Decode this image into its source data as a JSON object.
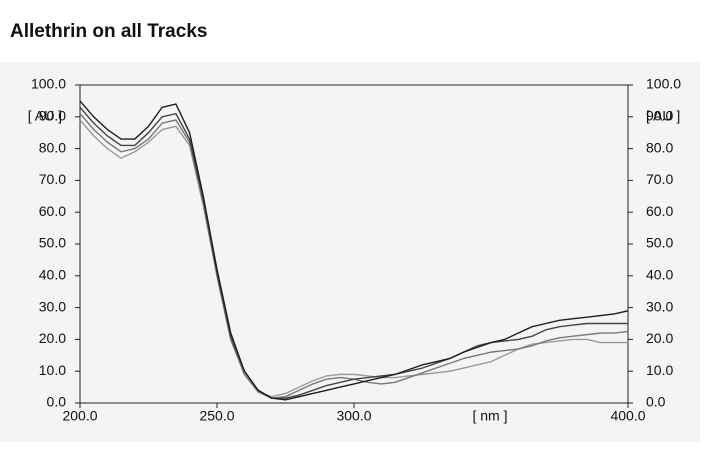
{
  "chart_data": {
    "type": "line",
    "title": "Allethrin on all Tracks",
    "x_label": "[ nm ]",
    "y_label": "[ AU ]",
    "x": [
      200,
      205,
      210,
      215,
      220,
      225,
      230,
      235,
      240,
      245,
      250,
      255,
      260,
      265,
      270,
      275,
      280,
      285,
      290,
      295,
      300,
      305,
      310,
      315,
      320,
      325,
      330,
      335,
      340,
      345,
      350,
      355,
      360,
      365,
      370,
      375,
      380,
      385,
      390,
      395,
      400
    ],
    "series": [
      {
        "color": "#1e1e1e",
        "values": [
          95,
          90,
          86,
          83,
          83,
          87,
          93,
          94,
          85,
          65,
          42,
          22,
          10,
          4,
          1.5,
          1,
          2,
          3,
          4,
          5,
          6,
          7,
          8,
          9,
          10.5,
          12,
          13,
          14,
          16,
          17.5,
          19,
          20,
          22,
          24,
          25,
          26,
          26.5,
          27,
          27.5,
          28,
          29
        ]
      },
      {
        "color": "#444444",
        "values": [
          93,
          88,
          84,
          81,
          81,
          85,
          90,
          91,
          83,
          64,
          41,
          21,
          10,
          4,
          1.5,
          1.5,
          2.5,
          4,
          5.5,
          6.5,
          7.5,
          8,
          8.5,
          9,
          10,
          11,
          12.5,
          14,
          16,
          18,
          19,
          19.5,
          20,
          21,
          23,
          24,
          24.5,
          25,
          25,
          25,
          25
        ]
      },
      {
        "color": "#777777",
        "values": [
          91,
          86,
          82,
          79,
          80,
          83,
          88,
          89,
          82,
          63,
          40,
          20,
          9,
          3.5,
          1.5,
          2,
          4,
          6,
          7.5,
          8,
          7.5,
          6.5,
          6,
          6.5,
          8,
          9.5,
          11,
          12.5,
          14,
          15,
          16,
          16.5,
          17,
          18,
          19.5,
          20.5,
          21,
          21.5,
          22,
          22,
          22.5
        ]
      },
      {
        "color": "#9a9a9a",
        "values": [
          89,
          84,
          80,
          77,
          79,
          82,
          86,
          87,
          81,
          62,
          40,
          20,
          9,
          3.5,
          2,
          3,
          5,
          7,
          8.5,
          9,
          9,
          8.5,
          8,
          8,
          8.5,
          9,
          9.5,
          10,
          11,
          12,
          13,
          15,
          17,
          18.5,
          19,
          19.5,
          20,
          20,
          19,
          19,
          19
        ]
      }
    ],
    "xlim": [
      200,
      400
    ],
    "ylim": [
      0,
      100
    ],
    "xticks": [
      {
        "value": 200,
        "label": "200.0"
      },
      {
        "value": 250,
        "label": "250.0"
      },
      {
        "value": 300,
        "label": "300.0"
      },
      {
        "value": 400,
        "label": "400.0"
      }
    ],
    "yticks": [
      {
        "value": 0,
        "label": "0.0"
      },
      {
        "value": 10,
        "label": "10.0"
      },
      {
        "value": 20,
        "label": "20.0"
      },
      {
        "value": 30,
        "label": "30.0"
      },
      {
        "value": 40,
        "label": "40.0"
      },
      {
        "value": 50,
        "label": "50.0"
      },
      {
        "value": 60,
        "label": "60.0"
      },
      {
        "value": 70,
        "label": "70.0"
      },
      {
        "value": 80,
        "label": "80.0"
      },
      {
        "value": 90,
        "label": "90.0"
      },
      {
        "value": 100,
        "label": "100.0"
      }
    ]
  }
}
